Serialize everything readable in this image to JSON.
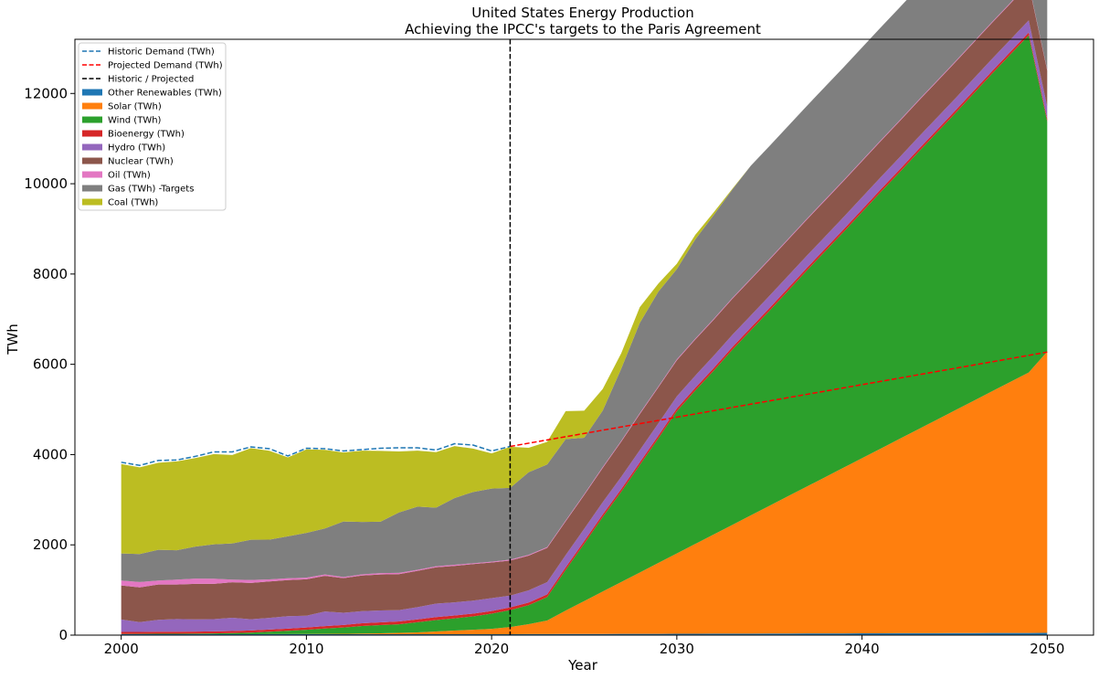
{
  "chart_data": {
    "type": "area",
    "title": "United States Energy Production",
    "subtitle": "Achieving the IPCC's targets to the Paris Agreement",
    "xlabel": "Year",
    "ylabel": "TWh",
    "xlim": [
      1997.5,
      2052.5
    ],
    "ylim": [
      0,
      13200
    ],
    "xticks": [
      2000,
      2010,
      2020,
      2030,
      2040,
      2050
    ],
    "yticks": [
      0,
      2000,
      4000,
      6000,
      8000,
      10000,
      12000
    ],
    "grid": false,
    "legend_position": "upper-left",
    "divider": {
      "x": 2021,
      "name": "Historic / Projected",
      "color": "#000000"
    },
    "x": [
      2000,
      2001,
      2002,
      2003,
      2004,
      2005,
      2006,
      2007,
      2008,
      2009,
      2010,
      2011,
      2012,
      2013,
      2014,
      2015,
      2016,
      2017,
      2018,
      2019,
      2020,
      2021,
      2022,
      2023,
      2024,
      2025,
      2026,
      2027,
      2028,
      2029,
      2030,
      2031,
      2032,
      2033,
      2034,
      2035,
      2036,
      2037,
      2038,
      2039,
      2040,
      2041,
      2042,
      2043,
      2044,
      2045,
      2046,
      2047,
      2048,
      2049,
      2050
    ],
    "series": [
      {
        "name": "Other Renewables (TWh)",
        "color": "#1f77b4",
        "values": [
          20,
          20,
          20,
          20,
          20,
          20,
          20,
          20,
          20,
          20,
          20,
          20,
          20,
          20,
          20,
          20,
          20,
          20,
          20,
          20,
          20,
          20,
          22,
          23,
          24,
          25,
          26,
          27,
          28,
          29,
          30,
          31,
          32,
          33,
          34,
          35,
          36,
          37,
          38,
          39,
          40,
          41,
          42,
          43,
          44,
          45,
          46,
          47,
          48,
          49,
          50
        ]
      },
      {
        "name": "Solar (TWh)",
        "color": "#ff7f0e",
        "values": [
          0,
          0,
          0,
          0,
          0,
          0,
          0,
          1,
          2,
          3,
          5,
          7,
          10,
          15,
          20,
          30,
          40,
          60,
          80,
          100,
          120,
          160,
          220,
          300,
          520,
          730,
          940,
          1150,
          1360,
          1570,
          1780,
          1990,
          2200,
          2410,
          2620,
          2830,
          3040,
          3250,
          3460,
          3670,
          3880,
          4090,
          4300,
          4510,
          4720,
          4930,
          5140,
          5350,
          5560,
          5770,
          6230
        ]
      },
      {
        "name": "Wind (TWh)",
        "color": "#2ca02c",
        "values": [
          6,
          7,
          10,
          11,
          14,
          18,
          26,
          35,
          55,
          74,
          95,
          120,
          140,
          168,
          182,
          190,
          225,
          255,
          272,
          295,
          335,
          375,
          420,
          520,
          900,
          1270,
          1650,
          2000,
          2380,
          2760,
          3150,
          3400,
          3630,
          3880,
          4100,
          4320,
          4550,
          4780,
          5000,
          5220,
          5450,
          5680,
          5900,
          6130,
          6350,
          6570,
          6800,
          7030,
          7250,
          7470,
          5100
        ]
      },
      {
        "name": "Bioenergy (TWh)",
        "color": "#d62728",
        "values": [
          45,
          45,
          45,
          45,
          45,
          46,
          46,
          47,
          48,
          48,
          50,
          52,
          55,
          60,
          62,
          64,
          64,
          64,
          64,
          62,
          60,
          60,
          60,
          60,
          60,
          60,
          60,
          60,
          60,
          60,
          60,
          60,
          60,
          60,
          60,
          60,
          60,
          60,
          60,
          60,
          60,
          60,
          60,
          60,
          60,
          60,
          60,
          60,
          60,
          60,
          60
        ]
      },
      {
        "name": "Hydro (TWh)",
        "color": "#9467bd",
        "values": [
          275,
          216,
          265,
          280,
          270,
          270,
          292,
          248,
          258,
          275,
          260,
          325,
          270,
          268,
          262,
          250,
          270,
          300,
          290,
          288,
          285,
          260,
          270,
          270,
          270,
          270,
          270,
          270,
          270,
          270,
          270,
          270,
          270,
          270,
          270,
          270,
          270,
          270,
          270,
          270,
          270,
          270,
          270,
          270,
          270,
          270,
          270,
          270,
          270,
          270,
          270
        ]
      },
      {
        "name": "Nuclear (TWh)",
        "color": "#8c564b",
        "values": [
          754,
          769,
          780,
          764,
          788,
          782,
          787,
          806,
          806,
          799,
          807,
          790,
          769,
          789,
          797,
          797,
          805,
          805,
          807,
          809,
          790,
          778,
          770,
          760,
          750,
          750,
          760,
          780,
          800,
          800,
          800,
          800,
          800,
          800,
          800,
          800,
          800,
          800,
          800,
          800,
          800,
          800,
          800,
          800,
          800,
          800,
          800,
          800,
          800,
          800,
          800
        ]
      },
      {
        "name": "Oil (TWh)",
        "color": "#e377c2",
        "values": [
          110,
          120,
          90,
          110,
          115,
          115,
          60,
          65,
          46,
          40,
          37,
          30,
          23,
          27,
          30,
          28,
          24,
          21,
          25,
          18,
          17,
          19,
          18,
          18,
          18,
          18,
          18,
          18,
          18,
          18,
          18,
          18,
          18,
          18,
          18,
          18,
          18,
          18,
          18,
          18,
          18,
          18,
          18,
          18,
          18,
          18,
          18,
          18,
          18,
          18,
          18
        ]
      },
      {
        "name": "Gas (TWh) -Targets",
        "color": "#7f7f7f",
        "values": [
          600,
          620,
          680,
          650,
          710,
          760,
          800,
          890,
          880,
          930,
          990,
          1020,
          1230,
          1160,
          1140,
          1340,
          1400,
          1300,
          1480,
          1580,
          1620,
          1590,
          1830,
          1830,
          1800,
          1250,
          1250,
          1600,
          2000,
          2100,
          2000,
          2200,
          2300,
          2400,
          2500,
          2500,
          2500,
          2500,
          2500,
          2500,
          2500,
          2500,
          2500,
          2500,
          2500,
          2500,
          2500,
          2500,
          2500,
          2500,
          2500
        ]
      },
      {
        "name": "Coal (TWh)",
        "color": "#bcbd22",
        "values": [
          1980,
          1920,
          1930,
          1970,
          1960,
          2000,
          1960,
          2030,
          1970,
          1750,
          1850,
          1740,
          1530,
          1580,
          1570,
          1350,
          1240,
          1230,
          1150,
          960,
          780,
          910,
          540,
          500,
          620,
          600,
          480,
          340,
          350,
          180,
          120,
          100,
          60,
          20,
          0,
          0,
          0,
          0,
          0,
          0,
          0,
          0,
          0,
          0,
          0,
          0,
          0,
          0,
          0,
          0,
          0
        ]
      }
    ],
    "lines": [
      {
        "name": "Historic Demand (TWh)",
        "color": "#1f77b4",
        "style": "dashed",
        "x": [
          2000,
          2001,
          2002,
          2003,
          2004,
          2005,
          2006,
          2007,
          2008,
          2009,
          2010,
          2011,
          2012,
          2013,
          2014,
          2015,
          2016,
          2017,
          2018,
          2019,
          2020,
          2021
        ],
        "values": [
          3830,
          3760,
          3870,
          3880,
          3960,
          4060,
          4060,
          4170,
          4130,
          3970,
          4140,
          4130,
          4080,
          4110,
          4140,
          4150,
          4150,
          4100,
          4240,
          4210,
          4080,
          4180
        ]
      },
      {
        "name": "Projected Demand (TWh)",
        "color": "#ff0000",
        "style": "dashed",
        "x": [
          2021,
          2050
        ],
        "values": [
          4180,
          6270
        ]
      }
    ],
    "legend_entries": [
      {
        "name": "Historic Demand (TWh)",
        "color": "#1f77b4",
        "kind": "line"
      },
      {
        "name": "Projected Demand (TWh)",
        "color": "#ff0000",
        "kind": "line"
      },
      {
        "name": "Historic / Projected",
        "color": "#000000",
        "kind": "line"
      },
      {
        "name": "Other Renewables (TWh)",
        "color": "#1f77b4",
        "kind": "patch"
      },
      {
        "name": "Solar (TWh)",
        "color": "#ff7f0e",
        "kind": "patch"
      },
      {
        "name": "Wind (TWh)",
        "color": "#2ca02c",
        "kind": "patch"
      },
      {
        "name": "Bioenergy (TWh)",
        "color": "#d62728",
        "kind": "patch"
      },
      {
        "name": "Hydro (TWh)",
        "color": "#9467bd",
        "kind": "patch"
      },
      {
        "name": "Nuclear (TWh)",
        "color": "#8c564b",
        "kind": "patch"
      },
      {
        "name": "Oil (TWh)",
        "color": "#e377c2",
        "kind": "patch"
      },
      {
        "name": "Gas (TWh) -Targets",
        "color": "#7f7f7f",
        "kind": "patch"
      },
      {
        "name": "Coal (TWh)",
        "color": "#bcbd22",
        "kind": "patch"
      }
    ]
  }
}
